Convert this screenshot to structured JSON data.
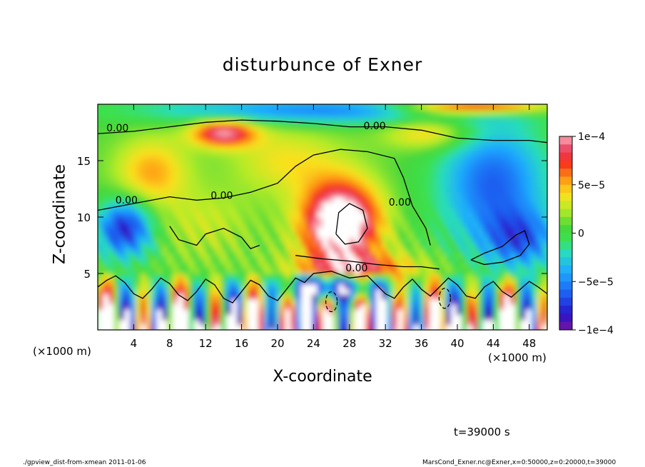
{
  "chart_data": {
    "type": "heatmap",
    "title": "disturbunce of Exner",
    "xlabel": "X-coordinate",
    "ylabel": "Z-coordinate",
    "x_unit_left": "(×1000 m)",
    "x_unit_right": "(×1000 m)",
    "xlim": [
      0,
      50
    ],
    "ylim": [
      0,
      20
    ],
    "x_ticks": [
      4,
      8,
      12,
      16,
      20,
      24,
      28,
      32,
      36,
      40,
      44,
      48
    ],
    "y_ticks": [
      5,
      10,
      15
    ],
    "colorbar": {
      "range": [
        -0.0001,
        0.0001
      ],
      "tick_values": [
        0.0001,
        5e-05,
        0,
        -5e-05,
        -0.0001
      ],
      "tick_labels": [
        "1e−4",
        "5e−5",
        "0",
        "−5e−5",
        "−1e−4"
      ]
    },
    "contour_labels": [
      {
        "text": "0.00",
        "x": 2.2,
        "z": 17.6
      },
      {
        "text": "0.00",
        "x": 30.8,
        "z": 17.8
      },
      {
        "text": "0.00",
        "x": 3.2,
        "z": 11.2
      },
      {
        "text": "0.00",
        "x": 13.8,
        "z": 11.6
      },
      {
        "text": "0.00",
        "x": 33.6,
        "z": 11.0
      },
      {
        "text": "0.00",
        "x": 28.8,
        "z": 5.2
      }
    ],
    "time_label": "t=39000 s",
    "footer_left": "./gpview_dist-from-xmean  2011-01-06",
    "footer_right": "MarsCond_Exner.nc@Exner,x=0:50000,z=0:20000,t=39000"
  }
}
